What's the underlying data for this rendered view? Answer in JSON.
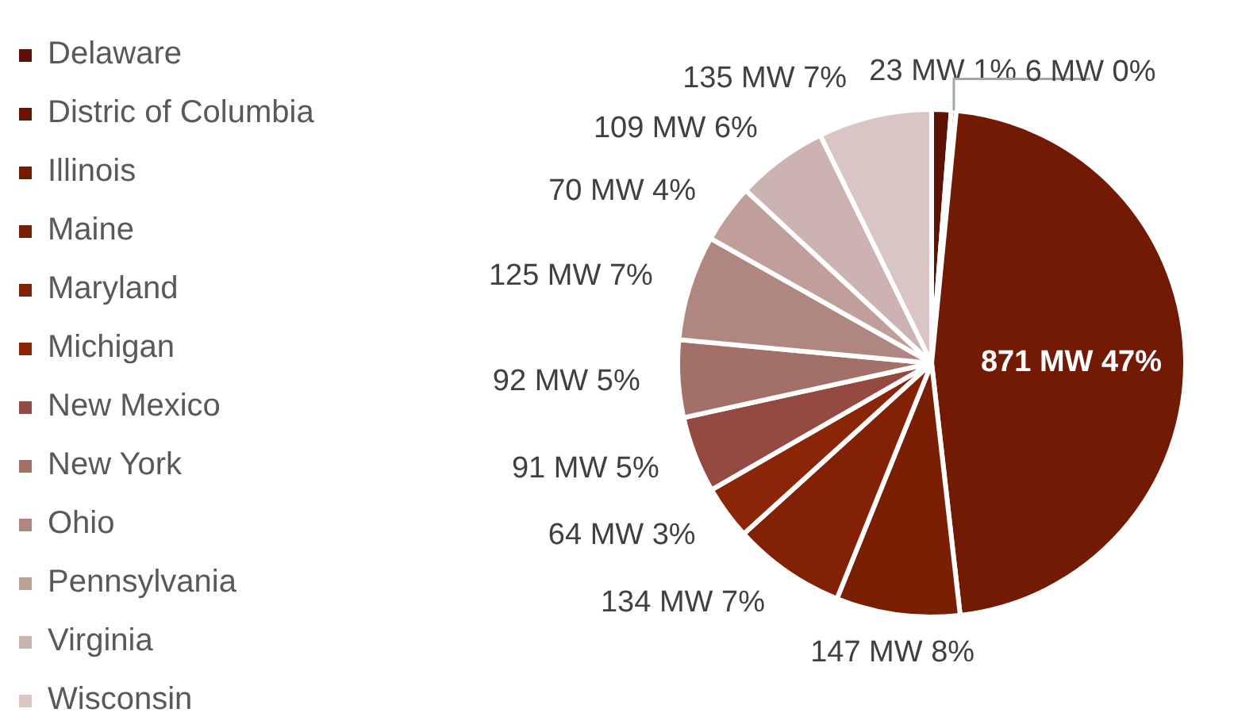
{
  "chart_data": {
    "type": "pie",
    "categories": [
      "Delaware",
      "Distric of Columbia",
      "Illinois",
      "Maine",
      "Maryland",
      "Michigan",
      "New Mexico",
      "New York",
      "Ohio",
      "Pennsylvania",
      "Virginia",
      "Wisconsin"
    ],
    "values": [
      23,
      6,
      871,
      147,
      134,
      64,
      91,
      92,
      125,
      70,
      109,
      135
    ],
    "value_labels": [
      "23 MW 1%",
      "6 MW 0%",
      "871 MW 47%",
      "147 MW 8%",
      "134 MW 7%",
      "64 MW 3%",
      "91 MW 5%",
      "92 MW 5%",
      "125 MW 7%",
      "70 MW 4%",
      "109 MW 6%",
      "135 MW 7%"
    ],
    "colors": [
      "#5c1204",
      "#661504",
      "#731a05",
      "#7a1e04",
      "#822105",
      "#8a2508",
      "#944a40",
      "#a27068",
      "#b08680",
      "#c09e9a",
      "#ccb2b0",
      "#d9c5c4"
    ],
    "legend": "left"
  }
}
